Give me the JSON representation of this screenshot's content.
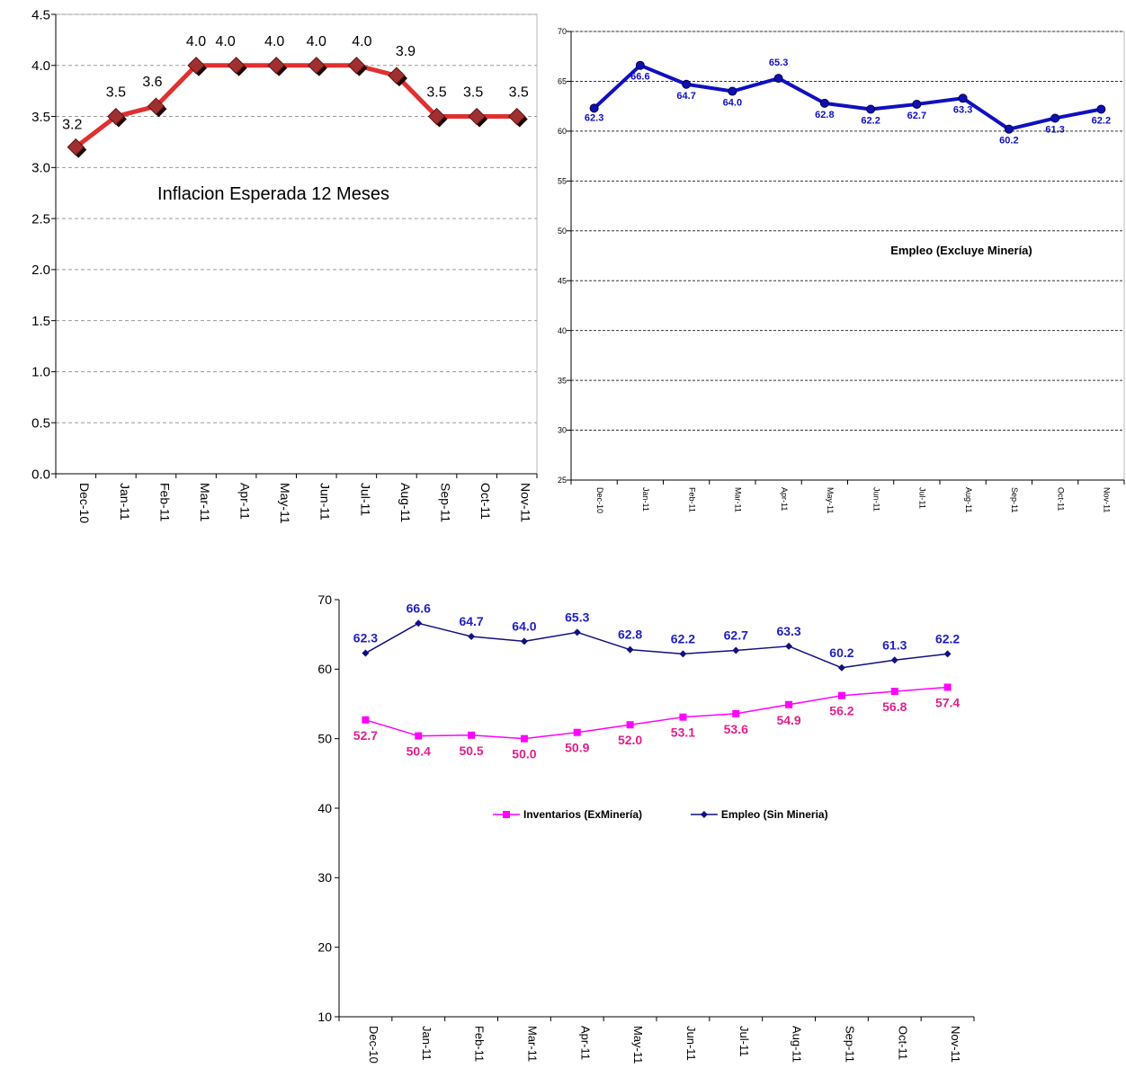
{
  "chart_data": [
    {
      "type": "line",
      "title": "Inflacion Esperada 12 Meses",
      "categories": [
        "Dec-10",
        "Jan-11",
        "Feb-11",
        "Mar-11",
        "Apr-11",
        "May-11",
        "Jun-11",
        "Jul-11",
        "Aug-11",
        "Sep-11",
        "Oct-11",
        "Nov-11"
      ],
      "series": [
        {
          "values": [
            3.2,
            3.5,
            3.6,
            4.0,
            4.0,
            4.0,
            4.0,
            4.0,
            3.9,
            3.5,
            3.5,
            3.5
          ],
          "labels": [
            "3.2",
            "3.5",
            "3.6",
            "4.0",
            "4.0",
            "4.0",
            "4.0",
            "4.0",
            "3.9",
            "3.5",
            "3.5",
            "3.5"
          ],
          "color": "#e03030"
        }
      ],
      "y_ticks": [
        "0.0",
        "0.5",
        "1.0",
        "1.5",
        "2.0",
        "2.5",
        "3.0",
        "3.5",
        "4.0",
        "4.5"
      ],
      "ylim": [
        0,
        4.5
      ],
      "grid": true
    },
    {
      "type": "line",
      "title": "Empleo (Excluye Minería)",
      "categories": [
        "Dec-10",
        "Jan-11",
        "Feb-11",
        "Mar-11",
        "Apr-11",
        "May-11",
        "Jun-11",
        "Jul-11",
        "Aug-11",
        "Sep-11",
        "Oct-11",
        "Nov-11"
      ],
      "series": [
        {
          "values": [
            62.3,
            66.6,
            64.7,
            64.0,
            65.3,
            62.8,
            62.2,
            62.7,
            63.3,
            60.2,
            61.3,
            62.2
          ],
          "labels": [
            "62.3",
            "66.6",
            "64.7",
            "64.0",
            "65.3",
            "62.8",
            "62.2",
            "62.7",
            "63.3",
            "60.2",
            "61.3",
            "62.2"
          ],
          "color": "#1010c0"
        }
      ],
      "y_ticks": [
        "25",
        "30",
        "35",
        "40",
        "45",
        "50",
        "55",
        "60",
        "65",
        "70"
      ],
      "ylim": [
        25,
        70
      ],
      "grid": true
    },
    {
      "type": "line",
      "categories": [
        "Dec-10",
        "Jan-11",
        "Feb-11",
        "Mar-11",
        "Apr-11",
        "May-11",
        "Jun-11",
        "Jul-11",
        "Aug-11",
        "Sep-11",
        "Oct-11",
        "Nov-11"
      ],
      "series": [
        {
          "name": "Inventarios (ExMinería)",
          "values": [
            52.7,
            50.4,
            50.5,
            50.0,
            50.9,
            52.0,
            53.1,
            53.6,
            54.9,
            56.2,
            56.8,
            57.4
          ],
          "labels": [
            "52.7",
            "50.4",
            "50.5",
            "50.0",
            "50.9",
            "52.0",
            "53.1",
            "53.6",
            "54.9",
            "56.2",
            "56.8",
            "57.4"
          ],
          "color": "#ff00ff",
          "label_color": "#e0208a"
        },
        {
          "name": "Empleo (Sin Mineria)",
          "values": [
            62.3,
            66.6,
            64.7,
            64.0,
            65.3,
            62.8,
            62.2,
            62.7,
            63.3,
            60.2,
            61.3,
            62.2
          ],
          "labels": [
            "62.3",
            "66.6",
            "64.7",
            "64.0",
            "65.3",
            "62.8",
            "62.2",
            "62.7",
            "63.3",
            "60.2",
            "61.3",
            "62.2"
          ],
          "color": "#101080",
          "label_color": "#2020c0"
        }
      ],
      "y_ticks": [
        "10",
        "20",
        "30",
        "40",
        "50",
        "60",
        "70"
      ],
      "ylim": [
        10,
        70
      ],
      "grid": false,
      "legend": "center"
    }
  ]
}
